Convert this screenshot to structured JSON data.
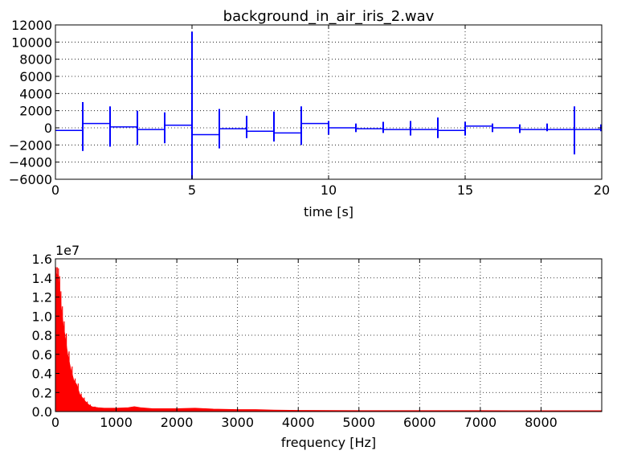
{
  "chart_data": [
    {
      "type": "line",
      "title": "background_in_air_iris_2.wav",
      "xlabel": "time [s]",
      "ylabel": "",
      "xlim": [
        0,
        20
      ],
      "ylim": [
        -6000,
        12000
      ],
      "xticks": [
        0,
        5,
        10,
        15,
        20
      ],
      "yticks": [
        -6000,
        -4000,
        -2000,
        0,
        2000,
        4000,
        6000,
        8000,
        10000,
        12000
      ],
      "grid": true,
      "color": "#0000ff",
      "segments": [
        {
          "x0": 0,
          "x1": 1,
          "level": -300
        },
        {
          "x0": 1,
          "x1": 2,
          "level": 500
        },
        {
          "x0": 2,
          "x1": 3,
          "level": 100
        },
        {
          "x0": 3,
          "x1": 4,
          "level": -200
        },
        {
          "x0": 4,
          "x1": 5,
          "level": 300
        },
        {
          "x0": 5,
          "x1": 6,
          "level": -800
        },
        {
          "x0": 6,
          "x1": 7,
          "level": -100
        },
        {
          "x0": 7,
          "x1": 8,
          "level": -400
        },
        {
          "x0": 8,
          "x1": 9,
          "level": -600
        },
        {
          "x0": 9,
          "x1": 10,
          "level": 500
        },
        {
          "x0": 10,
          "x1": 11,
          "level": 0
        },
        {
          "x0": 11,
          "x1": 12,
          "level": -100
        },
        {
          "x0": 12,
          "x1": 13,
          "level": -200
        },
        {
          "x0": 13,
          "x1": 14,
          "level": -200
        },
        {
          "x0": 14,
          "x1": 15,
          "level": -300
        },
        {
          "x0": 15,
          "x1": 16,
          "level": 200
        },
        {
          "x0": 16,
          "x1": 17,
          "level": 0
        },
        {
          "x0": 17,
          "x1": 18,
          "level": -200
        },
        {
          "x0": 18,
          "x1": 19,
          "level": -200
        },
        {
          "x0": 19,
          "x1": 20,
          "level": -200
        }
      ],
      "spikes": [
        {
          "x": 1,
          "min": -2700,
          "max": 3000
        },
        {
          "x": 2,
          "min": -2200,
          "max": 2500
        },
        {
          "x": 3,
          "min": -2000,
          "max": 2000
        },
        {
          "x": 4,
          "min": -1800,
          "max": 1800
        },
        {
          "x": 5,
          "min": -6000,
          "max": 11200
        },
        {
          "x": 6,
          "min": -2400,
          "max": 2200
        },
        {
          "x": 7,
          "min": -1200,
          "max": 1400
        },
        {
          "x": 8,
          "min": -1600,
          "max": 1900
        },
        {
          "x": 9,
          "min": -2000,
          "max": 2500
        },
        {
          "x": 10,
          "min": -800,
          "max": 800
        },
        {
          "x": 11,
          "min": -500,
          "max": 500
        },
        {
          "x": 12,
          "min": -600,
          "max": 700
        },
        {
          "x": 13,
          "min": -900,
          "max": 800
        },
        {
          "x": 14,
          "min": -1200,
          "max": 1200
        },
        {
          "x": 15,
          "min": -900,
          "max": 700
        },
        {
          "x": 16,
          "min": -500,
          "max": 500
        },
        {
          "x": 17,
          "min": -600,
          "max": 400
        },
        {
          "x": 18,
          "min": -400,
          "max": 500
        },
        {
          "x": 19,
          "min": -3100,
          "max": 2500
        },
        {
          "x": 20,
          "min": -400,
          "max": 400
        }
      ]
    },
    {
      "type": "area",
      "title": "",
      "xlabel": "frequency [Hz]",
      "ylabel": "",
      "offset_label": "1e7",
      "xlim": [
        0,
        9000
      ],
      "ylim": [
        0,
        1.6
      ],
      "xticks": [
        0,
        1000,
        2000,
        3000,
        4000,
        5000,
        6000,
        7000,
        8000
      ],
      "yticks": [
        0.0,
        0.2,
        0.4,
        0.6,
        0.8,
        1.0,
        1.2,
        1.4,
        1.6
      ],
      "grid": true,
      "color": "#ff0000",
      "envelope": {
        "x": [
          0,
          20,
          40,
          60,
          80,
          100,
          130,
          160,
          200,
          250,
          300,
          350,
          400,
          450,
          500,
          550,
          600,
          700,
          800,
          1000,
          1200,
          1300,
          1400,
          1600,
          2000,
          2300,
          2600,
          3000,
          3300,
          3600,
          4000,
          5000,
          6000,
          7000,
          8000,
          9000
        ],
        "y": [
          1.42,
          1.44,
          1.43,
          1.35,
          1.2,
          1.05,
          0.9,
          0.78,
          0.6,
          0.45,
          0.33,
          0.28,
          0.18,
          0.14,
          0.1,
          0.07,
          0.05,
          0.04,
          0.035,
          0.035,
          0.04,
          0.05,
          0.04,
          0.03,
          0.03,
          0.035,
          0.025,
          0.02,
          0.02,
          0.015,
          0.012,
          0.01,
          0.009,
          0.009,
          0.008,
          0.008
        ]
      }
    }
  ]
}
